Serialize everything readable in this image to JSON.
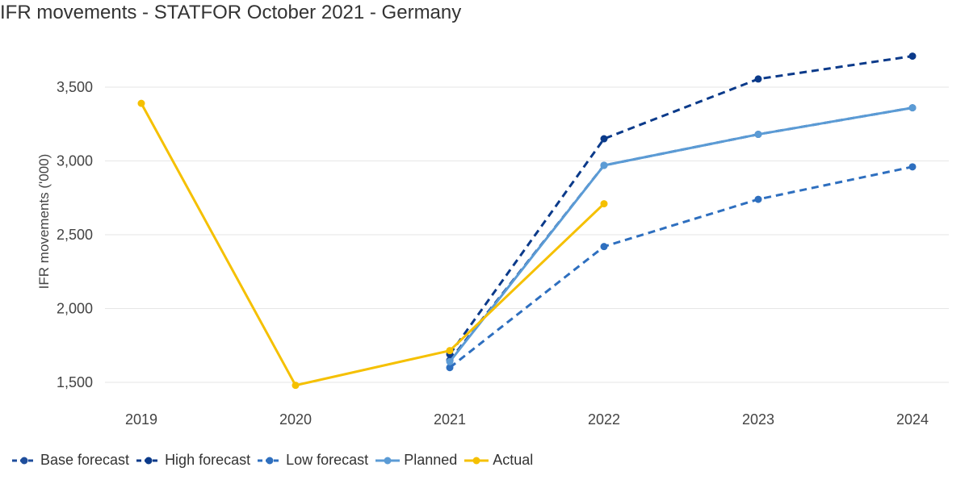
{
  "chart_data": {
    "type": "line",
    "title": "IFR movements - STATFOR October 2021 - Germany",
    "xlabel": "",
    "ylabel": "IFR movements ('000)",
    "x": [
      "2019",
      "2020",
      "2021",
      "2022",
      "2023",
      "2024"
    ],
    "ylim": [
      1400,
      3800
    ],
    "yticks": [
      1500,
      2000,
      2500,
      3000,
      3500
    ],
    "ytick_labels": [
      "1,500",
      "2,000",
      "2,500",
      "3,000",
      "3,500"
    ],
    "grid": true,
    "legend_position": "bottom",
    "series": [
      {
        "name": "Base forecast",
        "values": [
          null,
          null,
          1650,
          2970,
          3180,
          3360
        ],
        "color": "#1f4e9c",
        "dash": true
      },
      {
        "name": "High forecast",
        "values": [
          null,
          null,
          1690,
          3150,
          3555,
          3710
        ],
        "color": "#0b3a8a",
        "dash": true
      },
      {
        "name": "Low forecast",
        "values": [
          null,
          null,
          1600,
          2420,
          2740,
          2960
        ],
        "color": "#2e6fbf",
        "dash": true
      },
      {
        "name": "Planned",
        "values": [
          null,
          null,
          1640,
          2970,
          3180,
          3360
        ],
        "color": "#5b9bd5",
        "dash": false
      },
      {
        "name": "Actual",
        "values": [
          3390,
          1480,
          1715,
          2710,
          null,
          null
        ],
        "color": "#f5c000",
        "dash": false
      }
    ]
  }
}
